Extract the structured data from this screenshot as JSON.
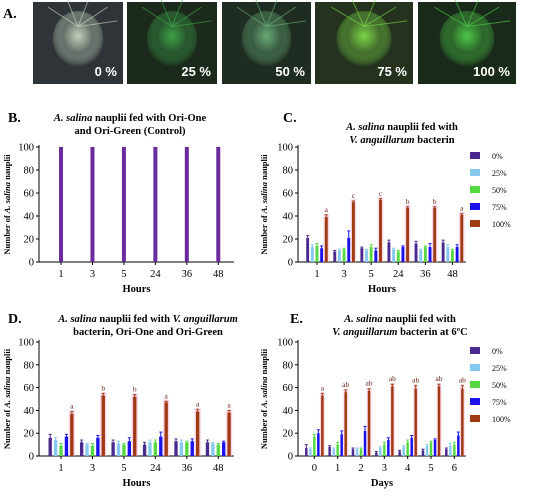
{
  "panel_a": {
    "letter": "A.",
    "photos": [
      {
        "label": "0 %",
        "shade": "#2f3438",
        "glow": "#c8d8c0"
      },
      {
        "label": "25 %",
        "shade": "#1b2a1c",
        "glow": "#3fa64a"
      },
      {
        "label": "50 %",
        "shade": "#1f2c22",
        "glow": "#6bb27a"
      },
      {
        "label": "75 %",
        "shade": "#24321e",
        "glow": "#7edc4a"
      },
      {
        "label": "100 %",
        "shade": "#1a2a1a",
        "glow": "#4fd04a"
      }
    ]
  },
  "colors": {
    "c0": "#4b2a8f",
    "c25": "#87c8ee",
    "c50": "#57d842",
    "c75": "#1a12e8",
    "c100": "#a03a14",
    "single": "#6a2c9c",
    "pink": "#f5b8d4"
  },
  "legend": [
    "0%",
    "25%",
    "50%",
    "75%",
    "100%"
  ],
  "chart_data": [
    {
      "id": "B",
      "letter": "B.",
      "type": "bar",
      "title_parts": [
        {
          "line": [
            "",
            "A. salina",
            " nauplii fed with Ori-One"
          ]
        },
        {
          "line": [
            "",
            "",
            "and Ori-Green (Control)"
          ]
        }
      ],
      "categories": [
        "1",
        "3",
        "5",
        "24",
        "36",
        "48"
      ],
      "series": [
        {
          "values": [
            100,
            100,
            100,
            100,
            100,
            100
          ]
        }
      ],
      "xlabel": "Hours",
      "ylabel_parts": [
        "Number of ",
        "A. salina",
        " nauplii"
      ],
      "ylim": [
        0,
        100
      ],
      "yticks": [
        0,
        20,
        40,
        60,
        80,
        100
      ],
      "legend": false
    },
    {
      "id": "C",
      "letter": "C.",
      "type": "bar",
      "title_parts": [
        {
          "line": [
            "",
            "A. salina",
            " nauplii fed with"
          ]
        },
        {
          "line": [
            "",
            "V. anguillarum",
            " bacterin"
          ]
        }
      ],
      "categories": [
        "1",
        "3",
        "5",
        "24",
        "36",
        "48"
      ],
      "series": [
        {
          "name": "0%",
          "values": [
            21,
            9,
            12,
            17,
            16,
            17
          ]
        },
        {
          "name": "25%",
          "values": [
            13,
            10,
            10,
            11,
            10,
            13
          ]
        },
        {
          "name": "50%",
          "values": [
            14,
            11,
            13,
            9,
            13,
            10
          ]
        },
        {
          "name": "75%",
          "values": [
            12,
            21,
            10,
            13,
            13,
            13
          ]
        },
        {
          "name": "100%",
          "values": [
            39,
            52,
            54,
            47,
            47,
            41
          ]
        }
      ],
      "errors": [
        [
          2,
          1,
          1,
          2,
          2,
          2
        ],
        [
          2,
          1,
          1,
          1,
          1,
          2
        ],
        [
          2,
          1,
          2,
          1,
          1,
          1
        ],
        [
          2,
          6,
          2,
          1,
          3,
          2
        ],
        [
          2,
          1,
          1,
          1,
          1,
          1
        ]
      ],
      "significance": [
        "a",
        "c",
        "c",
        "b",
        "b",
        "a"
      ],
      "xlabel": "Hours",
      "ylabel_parts": [
        "Number of ",
        "A. salina",
        " nauplii"
      ],
      "ylim": [
        0,
        100
      ],
      "yticks": [
        0,
        20,
        40,
        60,
        80,
        100
      ],
      "legend": true
    },
    {
      "id": "D",
      "letter": "D.",
      "type": "bar",
      "title_parts": [
        {
          "line": [
            "",
            "A. salina",
            " nauplii fed with ",
            "V. anguillarum"
          ]
        },
        {
          "line": [
            "",
            "",
            "bacterin, Ori-One and Ori-Green"
          ]
        }
      ],
      "categories": [
        "1",
        "3",
        "5",
        "24",
        "36",
        "48"
      ],
      "series": [
        {
          "name": "0%",
          "values": [
            16,
            12,
            12,
            10,
            13,
            12
          ]
        },
        {
          "name": "25%",
          "values": [
            14,
            10,
            11,
            12,
            12,
            11
          ]
        },
        {
          "name": "50%",
          "values": [
            9,
            9,
            10,
            12,
            12,
            10
          ]
        },
        {
          "name": "75%",
          "values": [
            17,
            16,
            13,
            17,
            13,
            12
          ]
        },
        {
          "name": "100%",
          "values": [
            37,
            53,
            52,
            47,
            39,
            38
          ]
        }
      ],
      "errors": [
        [
          3,
          2,
          2,
          2,
          2,
          2
        ],
        [
          2,
          1,
          2,
          2,
          2,
          1
        ],
        [
          2,
          2,
          1,
          2,
          1,
          1
        ],
        [
          2,
          2,
          3,
          4,
          2,
          1
        ],
        [
          2,
          2,
          2,
          1,
          2,
          2
        ]
      ],
      "significance": [
        "a",
        "b",
        "b",
        "a",
        "a",
        "a"
      ],
      "xlabel": "Hours",
      "ylabel_parts": [
        "Number of ",
        "A. salina",
        " nauplii"
      ],
      "ylim": [
        0,
        100
      ],
      "yticks": [
        0,
        20,
        40,
        60,
        80,
        100
      ],
      "legend": false
    },
    {
      "id": "E",
      "letter": "E.",
      "type": "bar",
      "title_parts": [
        {
          "line": [
            "",
            "A. salina",
            " nauplii fed with"
          ]
        },
        {
          "line": [
            "",
            "V. anguillarum",
            " bacterin at 6ºC"
          ]
        }
      ],
      "categories": [
        "0",
        "1",
        "2",
        "3",
        "4",
        "5",
        "6"
      ],
      "series": [
        {
          "name": "0%",
          "values": [
            7,
            8,
            6,
            3,
            4,
            5,
            6
          ]
        },
        {
          "name": "25%",
          "values": [
            6,
            6,
            6,
            7,
            8,
            9,
            9
          ]
        },
        {
          "name": "50%",
          "values": [
            17,
            10,
            6,
            10,
            12,
            12,
            10
          ]
        },
        {
          "name": "75%",
          "values": [
            20,
            19,
            22,
            14,
            16,
            14,
            18
          ]
        },
        {
          "name": "100%",
          "values": [
            53,
            56,
            57,
            61,
            59,
            61,
            59
          ]
        }
      ],
      "errors": [
        [
          3,
          1,
          1,
          1,
          1,
          1,
          1
        ],
        [
          1,
          1,
          1,
          1,
          1,
          1,
          2
        ],
        [
          2,
          2,
          1,
          2,
          2,
          1,
          2
        ],
        [
          3,
          3,
          4,
          2,
          2,
          1,
          3
        ],
        [
          2,
          2,
          2,
          2,
          3,
          2,
          3
        ]
      ],
      "significance": [
        "a",
        "ab",
        "ab",
        "ab",
        "ab",
        "ab",
        "ab"
      ],
      "xlabel": "Days",
      "ylabel_parts": [
        "Number of ",
        "A. salina",
        " nauplii"
      ],
      "ylim": [
        0,
        100
      ],
      "yticks": [
        0,
        20,
        40,
        60,
        80,
        100
      ],
      "legend": true
    }
  ]
}
